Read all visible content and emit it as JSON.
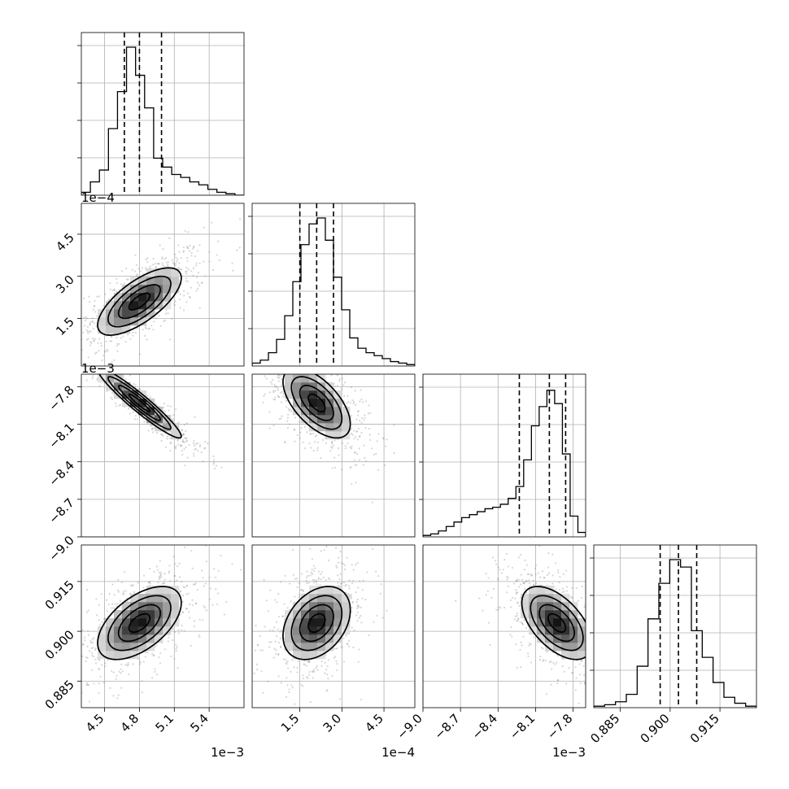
{
  "chart_data": {
    "type": "corner",
    "grid": true,
    "parameters": [
      {
        "range": [
          4.3,
          5.7
        ],
        "ticks": [
          4.5,
          4.8,
          5.1,
          5.4
        ],
        "tick_labels": [
          "4.5",
          "4.8",
          "5.1",
          "5.4"
        ],
        "offset_label": "1e−3",
        "mean": 4.8,
        "sigma": 0.18,
        "quantiles": [
          4.67,
          4.8,
          4.99
        ],
        "hist_counts": [
          0.02,
          0.09,
          0.17,
          0.45,
          0.7,
          1.0,
          0.81,
          0.59,
          0.25,
          0.19,
          0.14,
          0.12,
          0.09,
          0.07,
          0.04,
          0.02,
          0.01,
          0.0
        ]
      },
      {
        "range": [
          -0.2,
          5.6
        ],
        "ticks": [
          1.5,
          3.0,
          4.5
        ],
        "tick_labels": [
          "1.5",
          "3.0",
          "4.5"
        ],
        "offset_label": "1e−4",
        "mean": 2.1,
        "sigma": 0.6,
        "quantiles": [
          1.5,
          2.1,
          2.7
        ],
        "hist_counts": [
          0.02,
          0.04,
          0.09,
          0.18,
          0.34,
          0.57,
          0.82,
          0.96,
          1.0,
          0.85,
          0.6,
          0.38,
          0.19,
          0.12,
          0.09,
          0.07,
          0.05,
          0.03,
          0.02,
          0.01
        ]
      },
      {
        "range": [
          -9.0,
          -7.7
        ],
        "ticks": [
          -9.0,
          -8.7,
          -8.4,
          -8.1,
          -7.8
        ],
        "tick_labels": [
          "−9.0",
          "−8.7",
          "−8.4",
          "−8.1",
          "−7.8"
        ],
        "offset_label": "1e−3",
        "mean": -7.93,
        "sigma": 0.14,
        "quantiles": [
          -8.23,
          -7.99,
          -7.86
        ],
        "hist_counts": [
          0.01,
          0.02,
          0.04,
          0.07,
          0.1,
          0.13,
          0.15,
          0.17,
          0.19,
          0.2,
          0.22,
          0.26,
          0.34,
          0.52,
          0.75,
          0.88,
          0.99,
          0.9,
          0.56,
          0.14,
          0.03
        ]
      },
      {
        "range": [
          0.877,
          0.926
        ],
        "ticks": [
          0.885,
          0.9,
          0.915
        ],
        "tick_labels": [
          "0.885",
          "0.900",
          "0.915"
        ],
        "offset_label": "",
        "mean": 0.9025,
        "sigma": 0.0055,
        "quantiles": [
          0.897,
          0.9025,
          0.908
        ],
        "hist_counts": [
          0.01,
          0.02,
          0.04,
          0.09,
          0.28,
          0.6,
          0.84,
          1.0,
          0.95,
          0.52,
          0.34,
          0.17,
          0.07,
          0.03,
          0.01
        ]
      }
    ],
    "correlations": [
      [
        1,
        0.7,
        -0.95,
        0.55
      ],
      [
        0.7,
        1,
        -0.6,
        0.35
      ],
      [
        -0.95,
        -0.6,
        1,
        -0.55
      ],
      [
        0.55,
        0.35,
        -0.55,
        1
      ]
    ]
  }
}
